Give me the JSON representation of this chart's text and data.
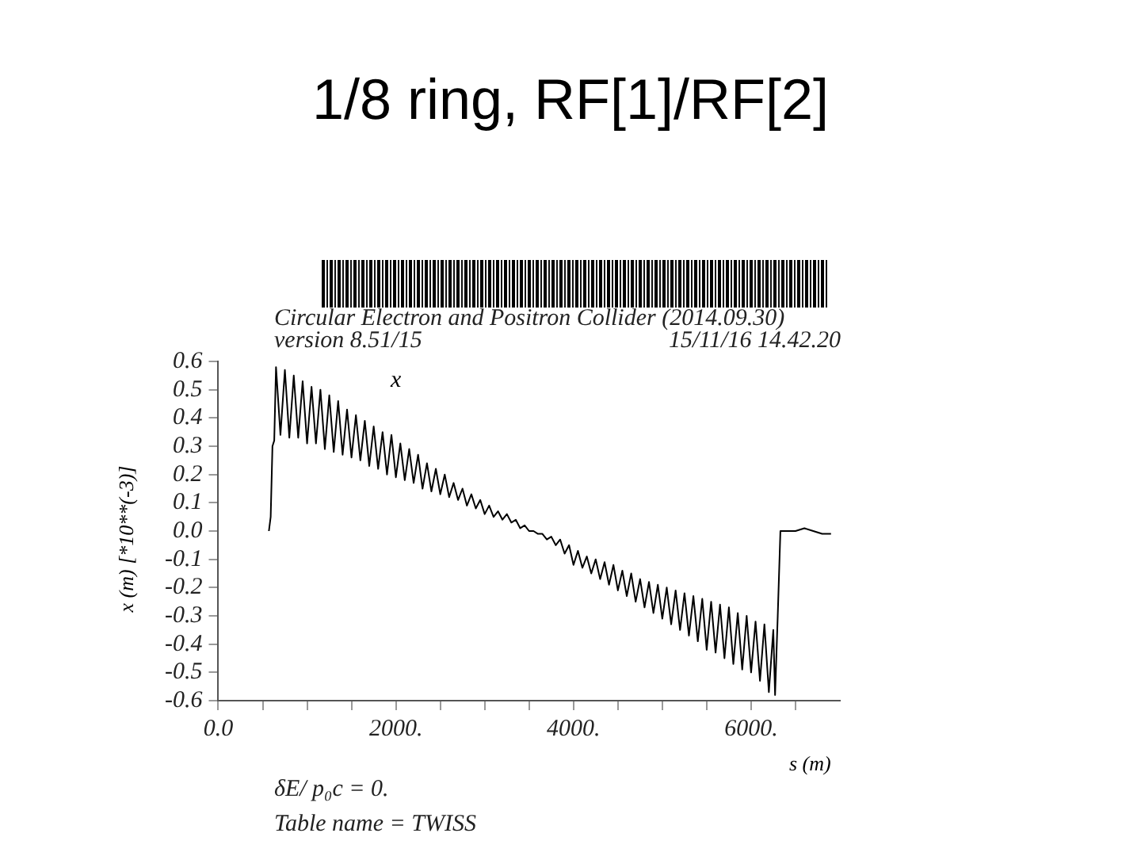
{
  "chart_data": {
    "type": "line",
    "title": "1/8 ring, RF[1]/RF[2]",
    "xlabel": "s (m)",
    "ylabel": "x (m)   [*10**(-3)]",
    "annotations": [
      "Circular Electron and Positron Collider (2014.09.30)",
      "version 8.51/15",
      "15/11/16  14.42.20",
      "δE/ p₀c  =  0.",
      "Table name = TWISS"
    ],
    "xlim": [
      0,
      7000
    ],
    "ylim": [
      -0.6,
      0.6
    ],
    "xticks": [
      {
        "value": 0,
        "label": "0.0"
      },
      {
        "value": 500,
        "label": null
      },
      {
        "value": 1000,
        "label": null
      },
      {
        "value": 1500,
        "label": null
      },
      {
        "value": 2000,
        "label": "2000."
      },
      {
        "value": 2500,
        "label": null
      },
      {
        "value": 3000,
        "label": null
      },
      {
        "value": 3500,
        "label": null
      },
      {
        "value": 4000,
        "label": "4000."
      },
      {
        "value": 4500,
        "label": null
      },
      {
        "value": 5000,
        "label": null
      },
      {
        "value": 5500,
        "label": null
      },
      {
        "value": 6000,
        "label": "6000."
      },
      {
        "value": 6500,
        "label": null
      }
    ],
    "yticks": [
      -0.6,
      -0.5,
      -0.4,
      -0.3,
      -0.2,
      -0.1,
      {
        "value": 0,
        "label": "0.0"
      },
      0.1,
      0.2,
      0.3,
      0.4,
      0.5,
      0.6
    ],
    "grid": false,
    "legend": false,
    "marker": "none",
    "line_style": "solid",
    "series": [
      {
        "name": "x",
        "color": "#000000",
        "x": [
          570,
          590,
          610,
          630,
          650,
          700,
          750,
          800,
          850,
          900,
          950,
          1000,
          1050,
          1100,
          1150,
          1200,
          1250,
          1300,
          1350,
          1400,
          1450,
          1500,
          1550,
          1600,
          1650,
          1700,
          1750,
          1800,
          1850,
          1900,
          1950,
          2000,
          2050,
          2100,
          2150,
          2200,
          2250,
          2300,
          2350,
          2400,
          2450,
          2500,
          2550,
          2600,
          2650,
          2700,
          2750,
          2800,
          2850,
          2900,
          2950,
          3000,
          3050,
          3100,
          3150,
          3200,
          3250,
          3300,
          3350,
          3400,
          3450,
          3500,
          3550,
          3600,
          3650,
          3700,
          3750,
          3800,
          3850,
          3900,
          3950,
          4000,
          4050,
          4100,
          4150,
          4200,
          4250,
          4300,
          4350,
          4400,
          4450,
          4500,
          4550,
          4600,
          4650,
          4700,
          4750,
          4800,
          4850,
          4900,
          4950,
          5000,
          5050,
          5100,
          5150,
          5200,
          5250,
          5300,
          5350,
          5400,
          5450,
          5500,
          5550,
          5600,
          5650,
          5700,
          5750,
          5800,
          5850,
          5900,
          5950,
          6000,
          6050,
          6100,
          6150,
          6200,
          6250,
          6270,
          6300,
          6330,
          6400,
          6500,
          6600,
          6700,
          6800,
          6900
        ],
        "values": [
          0.0,
          0.05,
          0.3,
          0.32,
          0.58,
          0.34,
          0.57,
          0.33,
          0.55,
          0.33,
          0.53,
          0.31,
          0.51,
          0.31,
          0.5,
          0.29,
          0.48,
          0.28,
          0.46,
          0.27,
          0.43,
          0.26,
          0.41,
          0.25,
          0.39,
          0.23,
          0.37,
          0.22,
          0.35,
          0.2,
          0.34,
          0.19,
          0.31,
          0.18,
          0.29,
          0.17,
          0.27,
          0.15,
          0.24,
          0.14,
          0.22,
          0.13,
          0.2,
          0.12,
          0.17,
          0.11,
          0.15,
          0.09,
          0.13,
          0.08,
          0.11,
          0.06,
          0.09,
          0.05,
          0.07,
          0.04,
          0.06,
          0.03,
          0.04,
          0.01,
          0.02,
          0.0,
          0.0,
          -0.01,
          -0.01,
          -0.03,
          -0.02,
          -0.05,
          -0.03,
          -0.08,
          -0.05,
          -0.12,
          -0.07,
          -0.13,
          -0.09,
          -0.15,
          -0.1,
          -0.17,
          -0.11,
          -0.19,
          -0.12,
          -0.21,
          -0.14,
          -0.23,
          -0.15,
          -0.25,
          -0.17,
          -0.27,
          -0.18,
          -0.29,
          -0.19,
          -0.31,
          -0.2,
          -0.33,
          -0.21,
          -0.35,
          -0.22,
          -0.37,
          -0.23,
          -0.39,
          -0.24,
          -0.42,
          -0.25,
          -0.43,
          -0.26,
          -0.45,
          -0.27,
          -0.47,
          -0.29,
          -0.49,
          -0.3,
          -0.5,
          -0.32,
          -0.53,
          -0.33,
          -0.57,
          -0.35,
          -0.58,
          -0.3,
          0.0,
          0.0,
          0.0,
          0.01,
          0.0,
          -0.01,
          -0.01
        ]
      }
    ]
  }
}
